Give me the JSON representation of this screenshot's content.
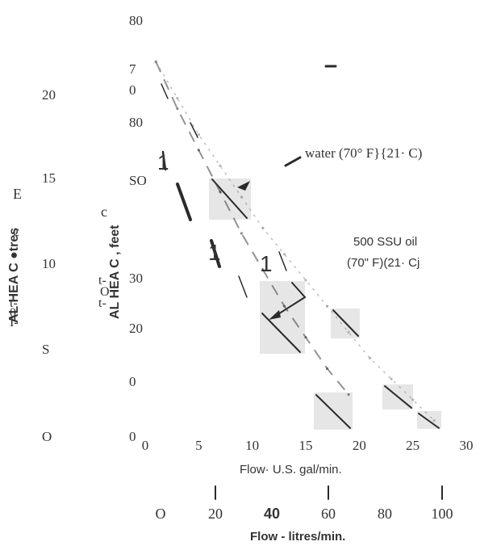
{
  "chart_data": {
    "type": "line",
    "title": "",
    "xlabel": "Flow· U.S. gal/min.",
    "xlabel_secondary": "Flow - litres/min.",
    "ylabel": "AL HEA C , feet",
    "ylabel_secondary": "AL HEA C ●tres",
    "x_ticks": [
      "0",
      "5",
      "10",
      "15",
      "20",
      "25",
      "30"
    ],
    "x_ticks_secondary": [
      "O",
      "20",
      "40",
      "60",
      "80",
      "100"
    ],
    "y_ticks": [
      "80",
      "7",
      "0",
      "80",
      "SO",
      "30",
      "20",
      "0",
      "0"
    ],
    "y_ticks_secondary": [
      "20",
      "15",
      "10",
      "S",
      "O"
    ],
    "xlim": [
      0,
      30
    ],
    "ylim": [
      0,
      80
    ],
    "grid": false,
    "annotations": [
      "water (70° F}{21· C)",
      "500 SSU oil (70\" F)(21· Cj"
    ],
    "series": [
      {
        "name": "water (70° F}{21· C)",
        "x": [
          1,
          3,
          5,
          7,
          9,
          11,
          13,
          15,
          17,
          19
        ],
        "y": [
          72,
          63,
          55,
          47,
          39,
          32,
          25,
          19,
          13,
          8
        ]
      },
      {
        "name": "500 SSU oil (70\" F)(21· Cj",
        "x": [
          1,
          3,
          5,
          7,
          9,
          11,
          13,
          15,
          17,
          19,
          21,
          23,
          25,
          27
        ],
        "y": [
          72,
          65,
          58,
          52,
          46,
          40,
          35,
          30,
          25,
          20,
          15,
          11,
          7,
          3
        ]
      }
    ]
  },
  "labels": {
    "y_left_fragments": [
      "E",
      "c",
      "t-",
      "0",
      "I-"
    ],
    "y_right_fragments": [
      "c",
      "t-",
      "O",
      "t-"
    ],
    "stray_marks": [
      "1",
      "1",
      "1",
      "\\",
      "\\",
      "\\"
    ]
  }
}
